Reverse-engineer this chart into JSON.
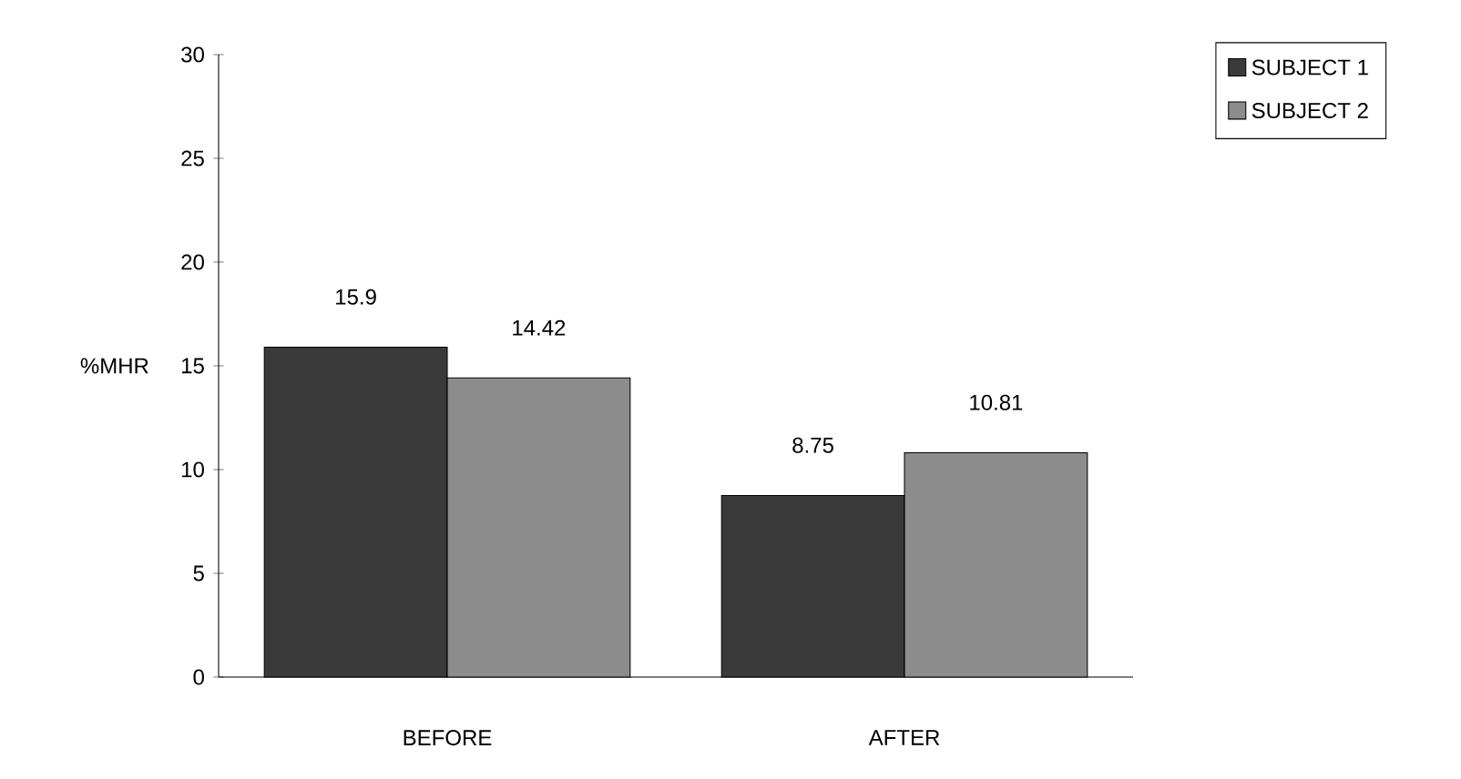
{
  "chart_data": {
    "type": "bar",
    "ylabel": "%MHR",
    "categories": [
      "BEFORE",
      "AFTER"
    ],
    "series": [
      {
        "name": "SUBJECT 1",
        "color": "#3a3a3a",
        "values": [
          15.9,
          8.75
        ]
      },
      {
        "name": "SUBJECT 2",
        "color": "#8c8c8c",
        "values": [
          14.42,
          10.81
        ]
      }
    ],
    "ylim": [
      0,
      30
    ],
    "yticks": [
      0,
      5,
      10,
      15,
      20,
      25,
      30
    ],
    "data_labels": true,
    "legend": "top right",
    "grid": false
  }
}
